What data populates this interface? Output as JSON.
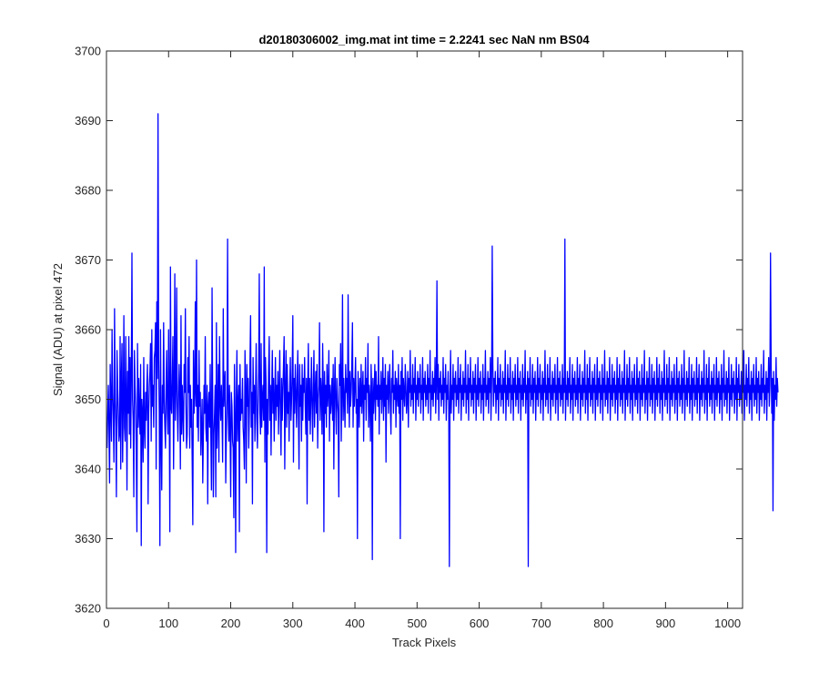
{
  "chart_data": {
    "type": "line",
    "title": "d20180306002_img.mat int time = 2.2241 sec  NaN nm BS04",
    "xlabel": "Track Pixels",
    "ylabel": "Signal (ADU) at pixel 472",
    "xlim": [
      0,
      1024
    ],
    "ylim": [
      3620,
      3700
    ],
    "xticks": [
      0,
      100,
      200,
      300,
      400,
      500,
      600,
      700,
      800,
      900,
      1000
    ],
    "yticks": [
      3620,
      3630,
      3640,
      3650,
      3660,
      3670,
      3680,
      3690,
      3700
    ],
    "grid": false,
    "legend": "none",
    "colors": {
      "line": "#0000ff",
      "axes": "#262626",
      "background": "#ffffff"
    },
    "series": [
      {
        "x_start": 1,
        "x_step": 1,
        "values": [
          3643,
          3648,
          3652,
          3646,
          3638,
          3655,
          3649,
          3644,
          3660,
          3651,
          3647,
          3641,
          3663,
          3650,
          3646,
          3636,
          3657,
          3652,
          3648,
          3644,
          3645,
          3659,
          3640,
          3653,
          3658,
          3641,
          3649,
          3662,
          3646,
          3644,
          3659,
          3651,
          3637,
          3654,
          3648,
          3659,
          3645,
          3656,
          3643,
          3653,
          3671,
          3650,
          3647,
          3636,
          3657,
          3652,
          3649,
          3642,
          3631,
          3658,
          3646,
          3653,
          3648,
          3645,
          3655,
          3629,
          3650,
          3648,
          3641,
          3656,
          3646,
          3643,
          3651,
          3647,
          3652,
          3655,
          3635,
          3648,
          3652,
          3654,
          3658,
          3644,
          3660,
          3649,
          3652,
          3646,
          3656,
          3657,
          3661,
          3640,
          3664,
          3653,
          3691,
          3656,
          3648,
          3629,
          3660,
          3645,
          3637,
          3652,
          3648,
          3661,
          3650,
          3646,
          3643,
          3652,
          3657,
          3648,
          3645,
          3660,
          3651,
          3631,
          3669,
          3649,
          3648,
          3653,
          3659,
          3640,
          3651,
          3668,
          3647,
          3652,
          3666,
          3649,
          3644,
          3650,
          3655,
          3651,
          3640,
          3662,
          3645,
          3652,
          3648,
          3644,
          3655,
          3651,
          3663,
          3649,
          3643,
          3645,
          3656,
          3651,
          3659,
          3643,
          3652,
          3646,
          3650,
          3641,
          3632,
          3657,
          3648,
          3651,
          3664,
          3649,
          3670,
          3646,
          3652,
          3644,
          3657,
          3649,
          3651,
          3642,
          3646,
          3650,
          3638,
          3645,
          3652,
          3648,
          3659,
          3646,
          3644,
          3652,
          3635,
          3649,
          3651,
          3646,
          3655,
          3645,
          3637,
          3666,
          3650,
          3636,
          3645,
          3648,
          3652,
          3636,
          3661,
          3643,
          3648,
          3655,
          3641,
          3659,
          3650,
          3647,
          3652,
          3648,
          3641,
          3663,
          3649,
          3652,
          3654,
          3638,
          3645,
          3650,
          3673,
          3648,
          3644,
          3652,
          3646,
          3636,
          3651,
          3649,
          3644,
          3643,
          3633,
          3655,
          3648,
          3628,
          3650,
          3657,
          3644,
          3649,
          3652,
          3631,
          3655,
          3647,
          3650,
          3648,
          3653,
          3646,
          3644,
          3640,
          3657,
          3651,
          3638,
          3655,
          3649,
          3653,
          3643,
          3648,
          3655,
          3662,
          3646,
          3651,
          3635,
          3656,
          3648,
          3652,
          3644,
          3651,
          3658,
          3647,
          3643,
          3649,
          3654,
          3668,
          3648,
          3645,
          3658,
          3646,
          3650,
          3652,
          3647,
          3669,
          3641,
          3656,
          3652,
          3628,
          3650,
          3645,
          3654,
          3659,
          3647,
          3652,
          3642,
          3651,
          3657,
          3648,
          3653,
          3644,
          3650,
          3656,
          3647,
          3652,
          3649,
          3654,
          3645,
          3651,
          3657,
          3648,
          3642,
          3653,
          3647,
          3651,
          3655,
          3659,
          3640,
          3651,
          3657,
          3646,
          3655,
          3648,
          3651,
          3644,
          3652,
          3656,
          3647,
          3650,
          3654,
          3662,
          3641,
          3653,
          3648,
          3655,
          3651,
          3646,
          3652,
          3657,
          3648,
          3640,
          3655,
          3649,
          3652,
          3644,
          3655,
          3647,
          3653,
          3651,
          3656,
          3649,
          3645,
          3653,
          3635,
          3652,
          3658,
          3647,
          3653,
          3645,
          3650,
          3656,
          3649,
          3644,
          3652,
          3657,
          3646,
          3651,
          3654,
          3648,
          3655,
          3643,
          3650,
          3652,
          3661,
          3647,
          3653,
          3651,
          3645,
          3658,
          3652,
          3631,
          3654,
          3648,
          3652,
          3646,
          3655,
          3649,
          3651,
          3657,
          3644,
          3652,
          3648,
          3650,
          3653,
          3647,
          3655,
          3640,
          3651,
          3656,
          3649,
          3645,
          3653,
          3650,
          3648,
          3636,
          3655,
          3652,
          3658,
          3644,
          3651,
          3665,
          3647,
          3653,
          3650,
          3646,
          3655,
          3651,
          3653,
          3648,
          3665,
          3652,
          3646,
          3654,
          3649,
          3651,
          3655,
          3661,
          3646,
          3653,
          3649,
          3652,
          3656,
          3648,
          3650,
          3630,
          3654,
          3651,
          3646,
          3653,
          3649,
          3655,
          3648,
          3651,
          3654,
          3644,
          3652,
          3650,
          3656,
          3647,
          3653,
          3651,
          3658,
          3646,
          3652,
          3650,
          3644,
          3655,
          3651,
          3627,
          3653,
          3648,
          3651,
          3655,
          3647,
          3654,
          3650,
          3652,
          3649,
          3659,
          3645,
          3652,
          3650,
          3654,
          3648,
          3651,
          3656,
          3647,
          3653,
          3649,
          3655,
          3641,
          3652,
          3650,
          3654,
          3648,
          3652,
          3655,
          3649,
          3645,
          3653,
          3651,
          3657,
          3648,
          3652,
          3650,
          3654,
          3646,
          3653,
          3651,
          3649,
          3655,
          3648,
          3652,
          3630,
          3654,
          3650,
          3656,
          3647,
          3653,
          3651,
          3649,
          3655,
          3652,
          3648,
          3650,
          3654,
          3646,
          3653,
          3651,
          3657,
          3649,
          3652,
          3650,
          3655,
          3648,
          3653,
          3651,
          3656,
          3647,
          3652,
          3650,
          3654,
          3649,
          3653,
          3651,
          3655,
          3648,
          3652,
          3650,
          3656,
          3647,
          3653,
          3651,
          3654,
          3649,
          3652,
          3650,
          3655,
          3648,
          3653,
          3651,
          3657,
          3647,
          3652,
          3650,
          3654,
          3649,
          3653,
          3651,
          3656,
          3648,
          3652,
          3667,
          3650,
          3655,
          3647,
          3653,
          3651,
          3654,
          3649,
          3652,
          3650,
          3656,
          3648,
          3653,
          3651,
          3655,
          3647,
          3652,
          3650,
          3654,
          3649,
          3626,
          3651,
          3657,
          3648,
          3652,
          3650,
          3655,
          3647,
          3653,
          3651,
          3654,
          3649,
          3652,
          3650,
          3656,
          3648,
          3653,
          3651,
          3655,
          3647,
          3652,
          3650,
          3654,
          3649,
          3653,
          3651,
          3657,
          3648,
          3652,
          3650,
          3655,
          3647,
          3653,
          3651,
          3656,
          3649,
          3652,
          3650,
          3654,
          3648,
          3653,
          3651,
          3655,
          3647,
          3652,
          3650,
          3656,
          3649,
          3653,
          3651,
          3654,
          3648,
          3652,
          3650,
          3655,
          3647,
          3653,
          3651,
          3657,
          3649,
          3652,
          3650,
          3654,
          3648,
          3653,
          3651,
          3656,
          3647,
          3652,
          3672,
          3655,
          3649,
          3653,
          3651,
          3654,
          3648,
          3652,
          3650,
          3656,
          3647,
          3653,
          3651,
          3655,
          3649,
          3652,
          3650,
          3654,
          3648,
          3653,
          3651,
          3657,
          3647,
          3652,
          3650,
          3655,
          3649,
          3653,
          3651,
          3656,
          3648,
          3652,
          3650,
          3654,
          3647,
          3653,
          3651,
          3655,
          3649,
          3652,
          3650,
          3656,
          3648,
          3653,
          3651,
          3654,
          3647,
          3652,
          3650,
          3655,
          3649,
          3653,
          3651,
          3657,
          3648,
          3652,
          3650,
          3654,
          3626,
          3653,
          3651,
          3656,
          3649,
          3652,
          3650,
          3655,
          3648,
          3653,
          3651,
          3654,
          3647,
          3652,
          3650,
          3656,
          3649,
          3653,
          3651,
          3655,
          3648,
          3652,
          3650,
          3654,
          3647,
          3653,
          3651,
          3657,
          3649,
          3652,
          3650,
          3655,
          3648,
          3653,
          3651,
          3656,
          3647,
          3652,
          3650,
          3654,
          3649,
          3653,
          3651,
          3655,
          3648,
          3652,
          3650,
          3656,
          3647,
          3653,
          3651,
          3654,
          3649,
          3652,
          3650,
          3655,
          3648,
          3653,
          3651,
          3673,
          3647,
          3652,
          3650,
          3654,
          3649,
          3653,
          3651,
          3656,
          3648,
          3652,
          3650,
          3655,
          3647,
          3653,
          3651,
          3654,
          3649,
          3652,
          3650,
          3656,
          3648,
          3653,
          3651,
          3655,
          3647,
          3652,
          3650,
          3654,
          3649,
          3653,
          3651,
          3657,
          3648,
          3652,
          3650,
          3655,
          3647,
          3653,
          3651,
          3656,
          3649,
          3652,
          3650,
          3654,
          3648,
          3653,
          3651,
          3655,
          3647,
          3652,
          3650,
          3656,
          3649,
          3653,
          3651,
          3654,
          3648,
          3652,
          3650,
          3655,
          3647,
          3653,
          3651,
          3657,
          3649,
          3652,
          3650,
          3654,
          3648,
          3653,
          3651,
          3656,
          3647,
          3652,
          3650,
          3655,
          3649,
          3653,
          3651,
          3654,
          3648,
          3652,
          3650,
          3656,
          3647,
          3653,
          3651,
          3655,
          3649,
          3652,
          3650,
          3654,
          3648,
          3653,
          3651,
          3657,
          3647,
          3652,
          3650,
          3655,
          3649,
          3653,
          3651,
          3656,
          3648,
          3652,
          3650,
          3654,
          3647,
          3653,
          3651,
          3655,
          3649,
          3652,
          3650,
          3656,
          3648,
          3653,
          3651,
          3654,
          3647,
          3652,
          3650,
          3655,
          3649,
          3653,
          3651,
          3657,
          3648,
          3652,
          3650,
          3654,
          3647,
          3653,
          3651,
          3656,
          3649,
          3652,
          3650,
          3655,
          3648,
          3653,
          3651,
          3654,
          3647,
          3652,
          3650,
          3656,
          3649,
          3653,
          3651,
          3655,
          3648,
          3652,
          3650,
          3654,
          3647,
          3653,
          3651,
          3657,
          3649,
          3652,
          3650,
          3655,
          3648,
          3653,
          3651,
          3656,
          3647,
          3652,
          3650,
          3654,
          3649,
          3653,
          3651,
          3655,
          3648,
          3652,
          3650,
          3656,
          3647,
          3653,
          3651,
          3654,
          3649,
          3652,
          3650,
          3655,
          3648,
          3653,
          3651,
          3657,
          3647,
          3652,
          3650,
          3654,
          3649,
          3653,
          3651,
          3656,
          3648,
          3652,
          3650,
          3655,
          3647,
          3653,
          3651,
          3654,
          3649,
          3652,
          3650,
          3656,
          3648,
          3653,
          3651,
          3655,
          3647,
          3652,
          3650,
          3654,
          3649,
          3653,
          3651,
          3657,
          3648,
          3652,
          3650,
          3655,
          3647,
          3653,
          3651,
          3656,
          3649,
          3652,
          3650,
          3654,
          3648,
          3653,
          3651,
          3655,
          3647,
          3652,
          3650,
          3656,
          3649,
          3653,
          3651,
          3654,
          3648,
          3652,
          3650,
          3655,
          3647,
          3653,
          3651,
          3657,
          3649,
          3652,
          3650,
          3654,
          3648,
          3653,
          3651,
          3656,
          3647,
          3652,
          3650,
          3655,
          3649,
          3653,
          3651,
          3654,
          3648,
          3652,
          3650,
          3656,
          3647,
          3653,
          3651,
          3655,
          3649,
          3652,
          3650,
          3654,
          3648,
          3653,
          3651,
          3657,
          3647,
          3652,
          3650,
          3655,
          3649,
          3653,
          3651,
          3656,
          3648,
          3652,
          3650,
          3654,
          3647,
          3653,
          3651,
          3655,
          3649,
          3652,
          3650,
          3656,
          3648,
          3653,
          3651,
          3654,
          3647,
          3652,
          3650,
          3655,
          3649,
          3653,
          3651,
          3657,
          3648,
          3652,
          3650,
          3654,
          3647,
          3653,
          3651,
          3656,
          3649,
          3652,
          3671,
          3655,
          3648,
          3653,
          3634,
          3654,
          3647,
          3652,
          3650,
          3656,
          3649,
          3653,
          3651
        ]
      }
    ]
  }
}
